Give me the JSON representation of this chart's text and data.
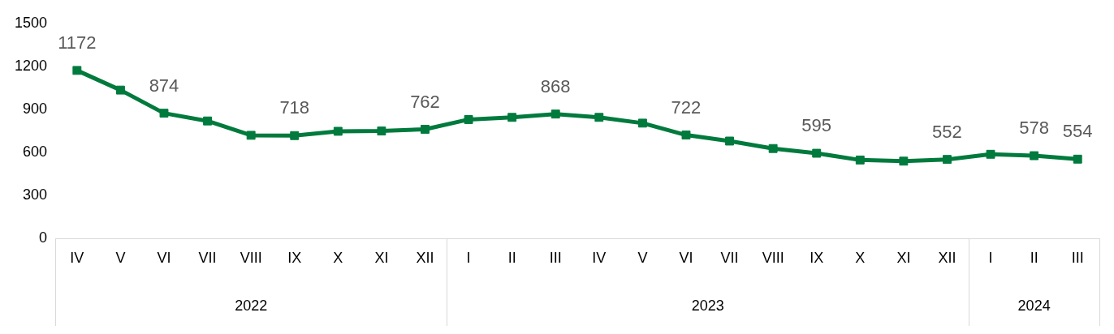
{
  "chart_data": {
    "type": "line",
    "categories": [
      "IV",
      "V",
      "VI",
      "VII",
      "VIII",
      "IX",
      "X",
      "XI",
      "XII",
      "I",
      "II",
      "III",
      "IV",
      "V",
      "VI",
      "VII",
      "VIII",
      "IX",
      "X",
      "XI",
      "XII",
      "I",
      "II",
      "III"
    ],
    "series": [
      {
        "color": "#007a3d",
        "values": [
          1172,
          1035,
          874,
          820,
          720,
          718,
          748,
          750,
          762,
          830,
          845,
          868,
          845,
          805,
          722,
          680,
          628,
          595,
          548,
          540,
          552,
          588,
          578,
          554
        ],
        "value_labels": [
          "1172",
          null,
          "874",
          null,
          null,
          "718",
          null,
          null,
          "762",
          null,
          null,
          "868",
          null,
          null,
          "722",
          null,
          null,
          "595",
          null,
          null,
          "552",
          null,
          "578",
          "554"
        ]
      }
    ],
    "annotations": [
      "2022",
      "2023",
      "2024"
    ],
    "ylim": [
      0,
      1500
    ],
    "yticks": [
      0,
      300,
      600,
      900,
      1200,
      1500
    ],
    "grid": false,
    "legend": false,
    "marker": "square",
    "line_style": "solid"
  }
}
